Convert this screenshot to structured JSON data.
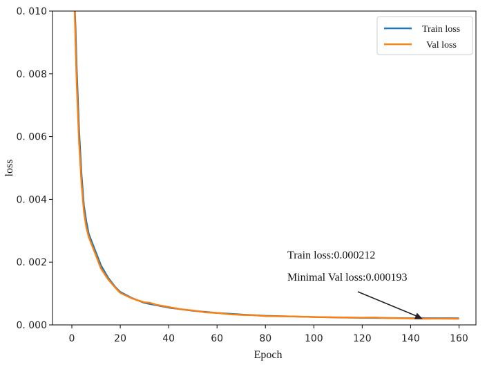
{
  "chart_data": {
    "type": "line",
    "xlabel": "Epoch",
    "ylabel": "loss",
    "xlim": [
      -8,
      167
    ],
    "ylim": [
      0,
      0.01
    ],
    "xticks": [
      0,
      20,
      40,
      60,
      80,
      100,
      120,
      140,
      160
    ],
    "yticks": [
      0.0,
      0.002,
      0.004,
      0.006,
      0.008,
      0.01
    ],
    "ytick_labels": [
      "0. 000",
      "0. 002",
      "0. 004",
      "0. 006",
      "0. 008",
      "0. 010"
    ],
    "grid": false,
    "legend_position": "top-right",
    "series": [
      {
        "name": "Train loss",
        "color": "#1f77b4",
        "x": [
          1,
          1.5,
          2,
          3,
          4,
          5,
          6,
          7,
          8,
          10,
          12,
          15,
          18,
          20,
          25,
          30,
          40,
          50,
          60,
          70,
          80,
          90,
          100,
          110,
          120,
          130,
          140,
          150,
          160
        ],
        "y": [
          0.0105,
          0.0095,
          0.0082,
          0.0062,
          0.0048,
          0.0038,
          0.0033,
          0.0029,
          0.0027,
          0.0023,
          0.0019,
          0.0015,
          0.0012,
          0.00105,
          0.00085,
          0.0007,
          0.00055,
          0.00045,
          0.00038,
          0.00033,
          0.00029,
          0.00027,
          0.00025,
          0.000235,
          0.000225,
          0.000218,
          0.000214,
          0.000213,
          0.000212
        ]
      },
      {
        "name": "Val loss",
        "color": "#ff7f0e",
        "x": [
          1,
          1.5,
          2,
          3,
          4,
          5,
          6,
          7,
          8,
          10,
          12,
          15,
          18,
          20,
          25,
          30,
          32,
          35,
          40,
          45,
          50,
          55,
          60,
          65,
          70,
          75,
          80,
          90,
          100,
          110,
          120,
          125,
          130,
          140,
          145,
          150,
          160
        ],
        "y": [
          0.0105,
          0.009,
          0.0077,
          0.0058,
          0.0045,
          0.0036,
          0.0031,
          0.0028,
          0.0026,
          0.0022,
          0.0018,
          0.00145,
          0.00118,
          0.00102,
          0.00084,
          0.00072,
          0.00071,
          0.00064,
          0.00057,
          0.0005,
          0.00046,
          0.0004,
          0.00038,
          0.00034,
          0.00032,
          0.00031,
          0.00028,
          0.00027,
          0.00025,
          0.00024,
          0.00023,
          0.000235,
          0.00022,
          0.000205,
          0.000195,
          0.0002,
          0.000193
        ]
      }
    ],
    "annotations": {
      "line1": "Train loss:0.000212",
      "line2": "Minimal Val loss:0.000193",
      "arrow_target": {
        "x": 145,
        "y": 0.00019
      }
    }
  }
}
